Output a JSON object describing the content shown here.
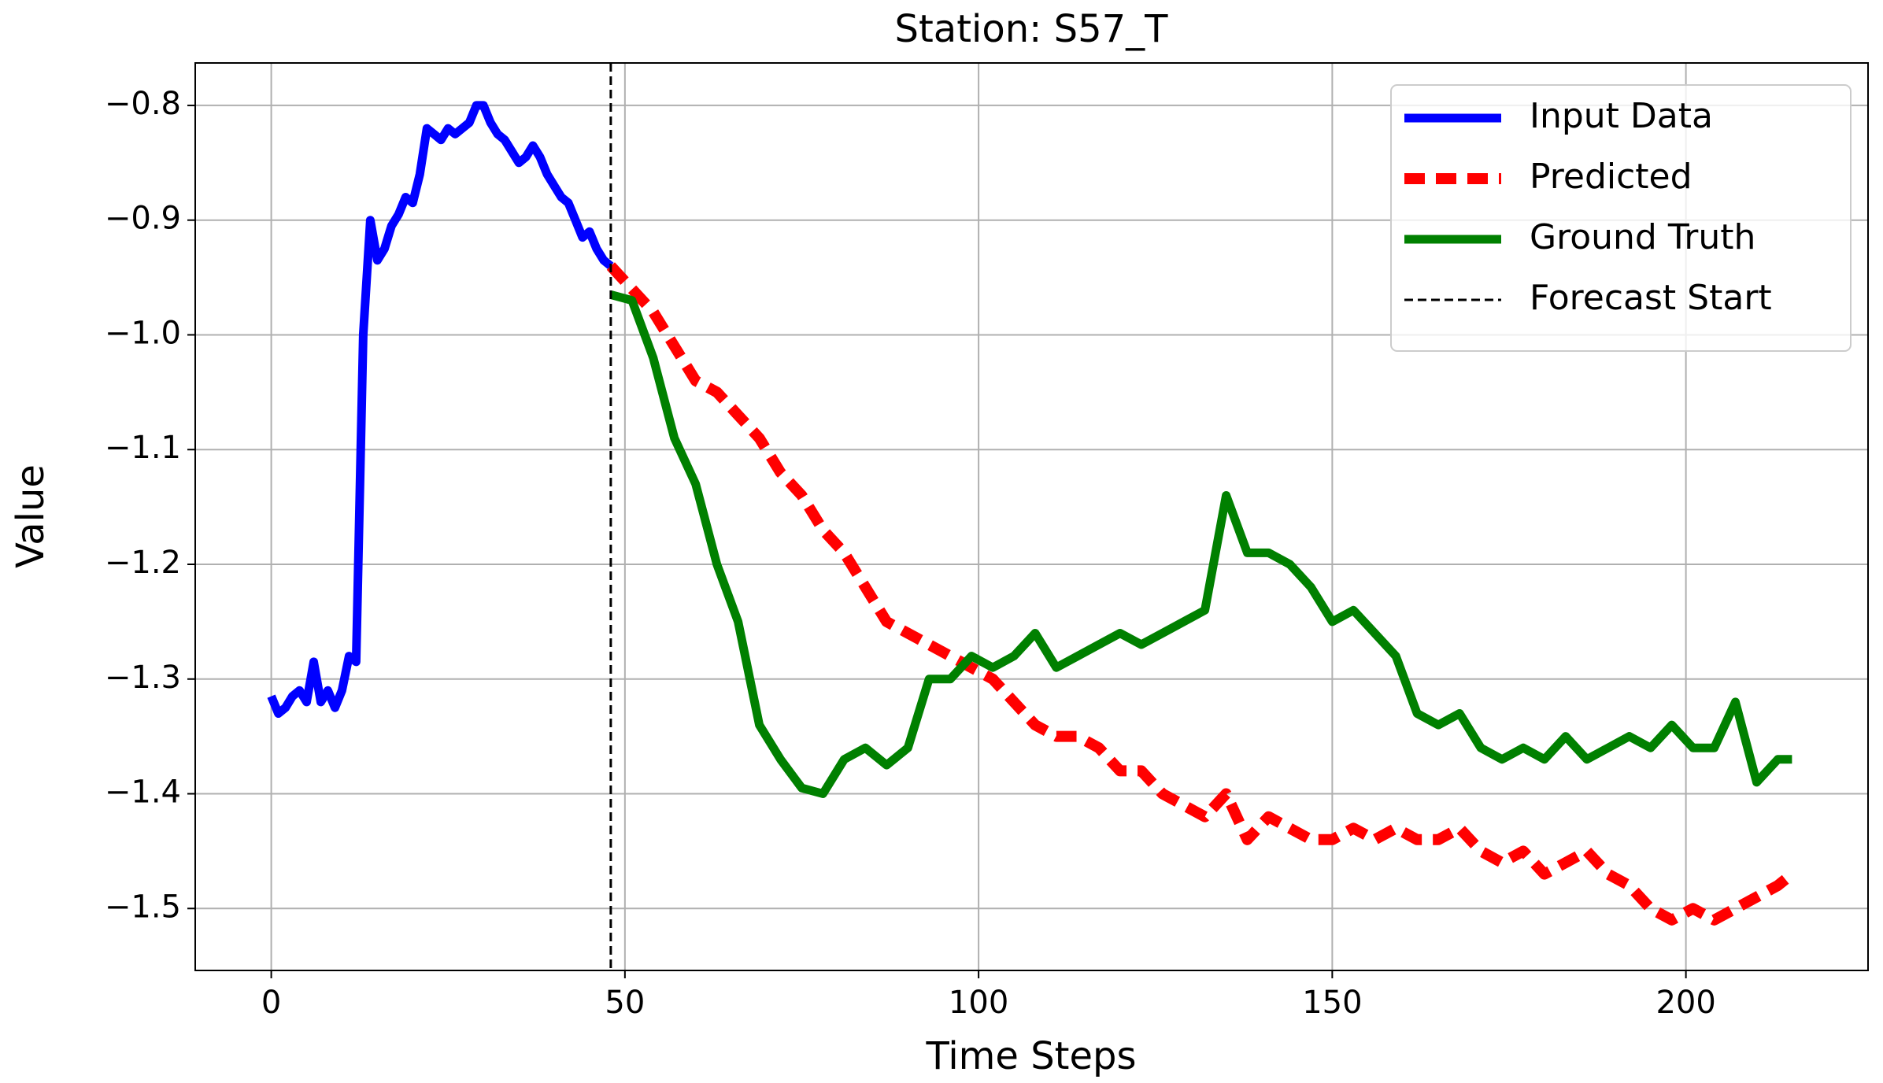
{
  "chart_data": {
    "type": "line",
    "title": "Station: S57_T",
    "xlabel": "Time Steps",
    "ylabel": "Value",
    "xlim": [
      -10.75,
      225.75
    ],
    "ylim": [
      -1.554,
      -0.763
    ],
    "xticks": [
      0,
      50,
      100,
      150,
      200
    ],
    "yticks": [
      {
        "value": -0.8,
        "label": "−0.8"
      },
      {
        "value": -0.9,
        "label": "−0.9"
      },
      {
        "value": -1.0,
        "label": "−1.0"
      },
      {
        "value": -1.1,
        "label": "−1.1"
      },
      {
        "value": -1.2,
        "label": "−1.2"
      },
      {
        "value": -1.3,
        "label": "−1.3"
      },
      {
        "value": -1.4,
        "label": "−1.4"
      },
      {
        "value": -1.5,
        "label": "−1.5"
      }
    ],
    "grid": true,
    "legend": "upper right",
    "series": [
      {
        "name": "Input Data",
        "color": "#0000ff",
        "style": "solid",
        "x": [
          0,
          1,
          2,
          3,
          4,
          5,
          6,
          7,
          8,
          9,
          10,
          11,
          12,
          13,
          14,
          15,
          16,
          17,
          18,
          19,
          20,
          21,
          22,
          23,
          24,
          25,
          26,
          27,
          28,
          29,
          30,
          31,
          32,
          33,
          34,
          35,
          36,
          37,
          38,
          39,
          40,
          41,
          42,
          43,
          44,
          45,
          46,
          47,
          48
        ],
        "values": [
          -1.315,
          -1.33,
          -1.325,
          -1.315,
          -1.31,
          -1.32,
          -1.285,
          -1.32,
          -1.31,
          -1.325,
          -1.31,
          -1.28,
          -1.285,
          -1.0,
          -0.9,
          -0.935,
          -0.925,
          -0.905,
          -0.895,
          -0.88,
          -0.885,
          -0.86,
          -0.82,
          -0.825,
          -0.83,
          -0.82,
          -0.825,
          -0.82,
          -0.815,
          -0.8,
          -0.8,
          -0.815,
          -0.825,
          -0.83,
          -0.84,
          -0.85,
          -0.845,
          -0.835,
          -0.845,
          -0.86,
          -0.87,
          -0.88,
          -0.885,
          -0.9,
          -0.915,
          -0.91,
          -0.925,
          -0.935,
          -0.94
        ]
      },
      {
        "name": "Predicted",
        "color": "#ff0000",
        "style": "dashed",
        "x": [
          48,
          51,
          54,
          57,
          60,
          63,
          66,
          69,
          72,
          75,
          78,
          81,
          84,
          87,
          90,
          93,
          96,
          99,
          102,
          105,
          108,
          111,
          114,
          117,
          120,
          123,
          126,
          129,
          132,
          135,
          138,
          141,
          144,
          147,
          150,
          153,
          156,
          159,
          162,
          165,
          168,
          171,
          174,
          177,
          180,
          183,
          186,
          189,
          192,
          195,
          198,
          201,
          204,
          207,
          210,
          213,
          215
        ],
        "values": [
          -0.94,
          -0.96,
          -0.98,
          -1.01,
          -1.04,
          -1.05,
          -1.07,
          -1.09,
          -1.12,
          -1.14,
          -1.17,
          -1.19,
          -1.22,
          -1.25,
          -1.26,
          -1.27,
          -1.28,
          -1.29,
          -1.3,
          -1.32,
          -1.34,
          -1.35,
          -1.35,
          -1.36,
          -1.38,
          -1.38,
          -1.4,
          -1.41,
          -1.42,
          -1.4,
          -1.44,
          -1.42,
          -1.43,
          -1.44,
          -1.44,
          -1.43,
          -1.44,
          -1.43,
          -1.44,
          -1.44,
          -1.43,
          -1.45,
          -1.46,
          -1.45,
          -1.47,
          -1.46,
          -1.45,
          -1.47,
          -1.48,
          -1.5,
          -1.51,
          -1.5,
          -1.51,
          -1.5,
          -1.49,
          -1.48,
          -1.47
        ]
      },
      {
        "name": "Ground Truth",
        "color": "#008000",
        "style": "solid",
        "x": [
          48,
          51,
          54,
          57,
          60,
          63,
          66,
          69,
          72,
          75,
          78,
          81,
          84,
          87,
          90,
          93,
          96,
          99,
          102,
          105,
          108,
          111,
          114,
          117,
          120,
          123,
          126,
          129,
          132,
          135,
          138,
          141,
          144,
          147,
          150,
          153,
          156,
          159,
          162,
          165,
          168,
          171,
          174,
          177,
          180,
          183,
          186,
          189,
          192,
          195,
          198,
          201,
          204,
          207,
          210,
          213,
          215
        ],
        "values": [
          -0.965,
          -0.97,
          -1.02,
          -1.09,
          -1.13,
          -1.2,
          -1.25,
          -1.34,
          -1.37,
          -1.395,
          -1.4,
          -1.37,
          -1.36,
          -1.375,
          -1.36,
          -1.3,
          -1.3,
          -1.28,
          -1.29,
          -1.28,
          -1.26,
          -1.29,
          -1.28,
          -1.27,
          -1.26,
          -1.27,
          -1.26,
          -1.25,
          -1.24,
          -1.14,
          -1.19,
          -1.19,
          -1.2,
          -1.22,
          -1.25,
          -1.24,
          -1.26,
          -1.28,
          -1.33,
          -1.34,
          -1.33,
          -1.36,
          -1.37,
          -1.36,
          -1.37,
          -1.35,
          -1.37,
          -1.36,
          -1.35,
          -1.36,
          -1.34,
          -1.36,
          -1.36,
          -1.32,
          -1.39,
          -1.37,
          -1.37
        ]
      }
    ],
    "vlines": [
      {
        "name": "Forecast Start",
        "x": 48,
        "color": "#000000",
        "style": "dashed"
      }
    ]
  }
}
